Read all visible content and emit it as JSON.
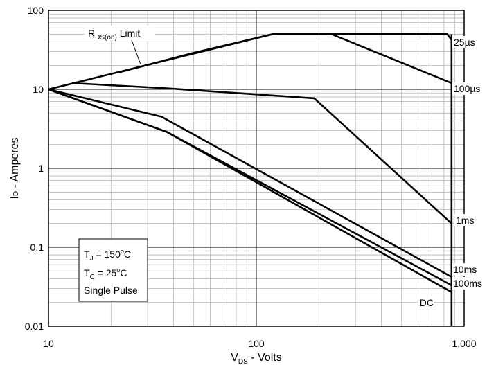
{
  "chart_data": {
    "type": "line",
    "xscale": "log",
    "yscale": "log",
    "xlim": [
      10,
      1000
    ],
    "ylim": [
      0.01,
      100
    ],
    "grid": true,
    "x_ticks": [
      10,
      100,
      1000
    ],
    "x_tick_labels": [
      "10",
      "100",
      "1,000"
    ],
    "y_ticks": [
      0.01,
      0.1,
      1,
      10,
      100
    ],
    "y_tick_labels": [
      "0.01",
      "0.1",
      "1",
      "10",
      "100"
    ],
    "ylabel_main": "I",
    "ylabel_sub": "D",
    "ylabel_rest": " - Amperes",
    "xlabel_main": "V",
    "xlabel_sub": "DS",
    "xlabel_rest": " - Volts",
    "rds_label": {
      "main": "R",
      "sub": "DS(on)",
      "rest": " Limit"
    },
    "conditions": {
      "tj": {
        "main": "T",
        "sub": "J",
        "mid": " = 150",
        "sup": "o",
        "end": "C"
      },
      "tc": {
        "main": "T",
        "sub": "C",
        "mid": " = 25",
        "sup": "o",
        "end": "C"
      },
      "pulse": "Single Pulse"
    },
    "series": [
      {
        "name": "25µs",
        "points": [
          [
            10,
            10
          ],
          [
            120,
            50
          ],
          [
            830,
            50
          ],
          [
            870,
            42
          ]
        ]
      },
      {
        "name": "100µs",
        "points": [
          [
            22,
            16.5
          ],
          [
            50,
            29
          ],
          [
            120,
            50
          ],
          [
            230,
            50
          ],
          [
            870,
            12
          ]
        ]
      },
      {
        "name": "1ms",
        "points": [
          [
            13,
            12
          ],
          [
            37,
            10.3
          ],
          [
            190,
            7.7
          ],
          [
            870,
            0.2
          ]
        ]
      },
      {
        "name": "10ms",
        "points": [
          [
            10,
            10
          ],
          [
            35,
            4.5
          ],
          [
            870,
            0.042
          ]
        ]
      },
      {
        "name": "100ms",
        "points": [
          [
            10,
            10
          ],
          [
            37,
            2.9
          ],
          [
            870,
            0.033
          ]
        ]
      },
      {
        "name": "DC",
        "points": [
          [
            10,
            10
          ],
          [
            37,
            2.9
          ],
          [
            870,
            0.027
          ]
        ]
      }
    ],
    "vertical_limit": {
      "x": 870,
      "y_range": [
        0.01,
        50
      ]
    }
  }
}
